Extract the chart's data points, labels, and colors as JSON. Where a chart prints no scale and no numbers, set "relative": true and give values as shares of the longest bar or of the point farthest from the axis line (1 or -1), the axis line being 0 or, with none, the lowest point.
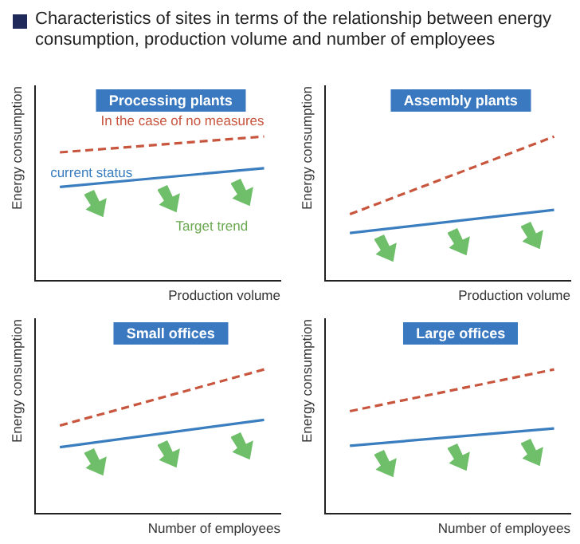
{
  "chart_data": [
    {
      "type": "line",
      "title": "Processing plants",
      "xlabel": "Production volume",
      "ylabel": "Energy consumption",
      "categories": [
        null,
        null
      ],
      "relative": true,
      "legend": false,
      "marker": "none",
      "grid": false,
      "series": [
        {
          "name": "In the case of no measures",
          "color": "#c8553d",
          "line_style": "dashed",
          "values": [
            0.89,
            1
          ]
        },
        {
          "name": "current status",
          "color": "#3a7ebf",
          "line_style": "solid",
          "values": [
            0.65,
            0.78
          ]
        }
      ],
      "annotations": [
        "Characteristics of sites in terms of the relationship between energy consumption, production volume and number of employees",
        "Target trend"
      ]
    },
    {
      "type": "line",
      "title": "Assembly plants",
      "xlabel": "Production volume",
      "ylabel": "Energy consumption",
      "categories": [
        null,
        null
      ],
      "relative": true,
      "legend": false,
      "marker": "none",
      "grid": false,
      "series": [
        {
          "color": "#c8553d",
          "line_style": "dashed",
          "values": [
            0.46,
            1
          ]
        },
        {
          "color": "#3a7ebf",
          "line_style": "solid",
          "values": [
            0.33,
            0.49
          ]
        }
      ]
    },
    {
      "type": "line",
      "title": "Small offices",
      "xlabel": "Number of employees",
      "ylabel": "Energy consumption",
      "categories": [
        null,
        null
      ],
      "relative": true,
      "legend": false,
      "marker": "none",
      "grid": false,
      "series": [
        {
          "color": "#c8553d",
          "line_style": "dashed",
          "values": [
            0.61,
            1
          ]
        },
        {
          "color": "#3a7ebf",
          "line_style": "solid",
          "values": [
            0.46,
            0.65
          ]
        }
      ]
    },
    {
      "type": "line",
      "title": "Large offices",
      "xlabel": "Number of employees",
      "ylabel": "Energy consumption",
      "categories": [
        null,
        null
      ],
      "relative": true,
      "legend": false,
      "marker": "none",
      "grid": false,
      "series": [
        {
          "color": "#c8553d",
          "line_style": "dashed",
          "values": [
            0.71,
            1
          ]
        },
        {
          "color": "#3a7ebf",
          "line_style": "solid",
          "values": [
            0.47,
            0.59
          ]
        }
      ]
    }
  ]
}
